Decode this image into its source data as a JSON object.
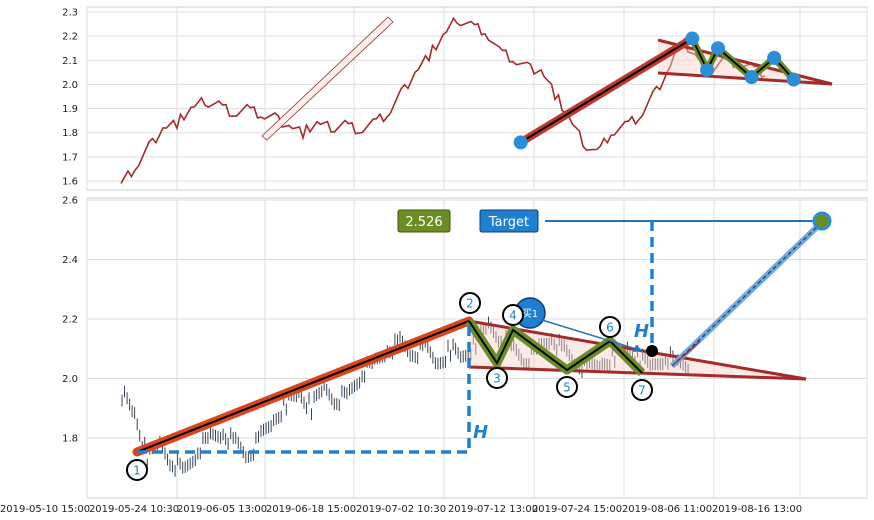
{
  "chart_data": [
    {
      "type": "line",
      "panel": "top",
      "title": "",
      "ylim": [
        1.56,
        2.31
      ],
      "yticks": [
        "1.6",
        "1.7",
        "1.8",
        "1.9",
        "2.0",
        "2.1",
        "2.2",
        "2.3"
      ],
      "grid": true,
      "series": [
        {
          "values": [
            1.59,
            1.65,
            1.74,
            1.82,
            1.84,
            1.9,
            1.93,
            1.92,
            1.88,
            1.9,
            1.87,
            1.86,
            1.83,
            1.8,
            1.84,
            1.82,
            1.84,
            1.81,
            1.84,
            1.87,
            1.96,
            2.05,
            2.12,
            2.2,
            2.27,
            2.25,
            2.22,
            2.14,
            2.1,
            2.07,
            2.06,
            1.96,
            1.86,
            1.76,
            1.72,
            1.8,
            1.83,
            1.86,
            1.95,
            2.05,
            2.18,
            2.12,
            2.06,
            2.1,
            2.09,
            2.07,
            2.04
          ]
        }
      ],
      "pattern_points": [
        {
          "x": 0.556,
          "y": 1.76
        },
        {
          "x": 0.776,
          "y": 2.19
        },
        {
          "x": 0.795,
          "y": 2.06
        },
        {
          "x": 0.809,
          "y": 2.15
        },
        {
          "x": 0.852,
          "y": 2.03
        },
        {
          "x": 0.881,
          "y": 2.11
        },
        {
          "x": 0.906,
          "y": 2.02
        }
      ]
    },
    {
      "type": "line",
      "panel": "bottom",
      "title": "",
      "ylim": [
        1.64,
        2.6
      ],
      "yticks": [
        "1.8",
        "2.0",
        "2.2",
        "2.4",
        "2.6"
      ],
      "xticks": [
        "2019-05-10 15:00",
        "2019-05-24 10:30",
        "2019-06-05 13:00",
        "2019-06-18 15:00",
        "2019-07-02 10:30",
        "2019-07-12 13:00",
        "2019-07-24 15:00",
        "2019-08-06 11:00",
        "2019-08-16 13:00"
      ],
      "grid": true,
      "series": [
        {
          "values": [
            1.95,
            1.88,
            1.73,
            1.78,
            1.72,
            1.69,
            1.76,
            1.8,
            1.82,
            1.78,
            1.74,
            1.8,
            1.86,
            1.92,
            1.95,
            1.9,
            1.97,
            1.93,
            1.95,
            2.02,
            2.05,
            2.1,
            2.12,
            2.08,
            2.1,
            2.05,
            2.1,
            2.07,
            2.12,
            2.18,
            2.14,
            2.1,
            2.06,
            2.1,
            2.14,
            2.09,
            2.05,
            2.03,
            2.05,
            2.08,
            2.1,
            2.06,
            2.04,
            2.08,
            2.05
          ]
        }
      ],
      "pattern_points": [
        {
          "label": "1",
          "y": 1.75
        },
        {
          "label": "2",
          "y": 2.19
        },
        {
          "label": "3",
          "y": 2.06
        },
        {
          "label": "4",
          "y": 2.15
        },
        {
          "label": "5",
          "y": 2.03
        },
        {
          "label": "6",
          "y": 2.11
        },
        {
          "label": "7",
          "y": 2.02
        }
      ],
      "breakout_price": 2.09,
      "target_price": 2.526,
      "annotations": {
        "target_value": "2.526",
        "target_label": "Target",
        "buy_label": "买1",
        "height_label": "H"
      }
    }
  ]
}
